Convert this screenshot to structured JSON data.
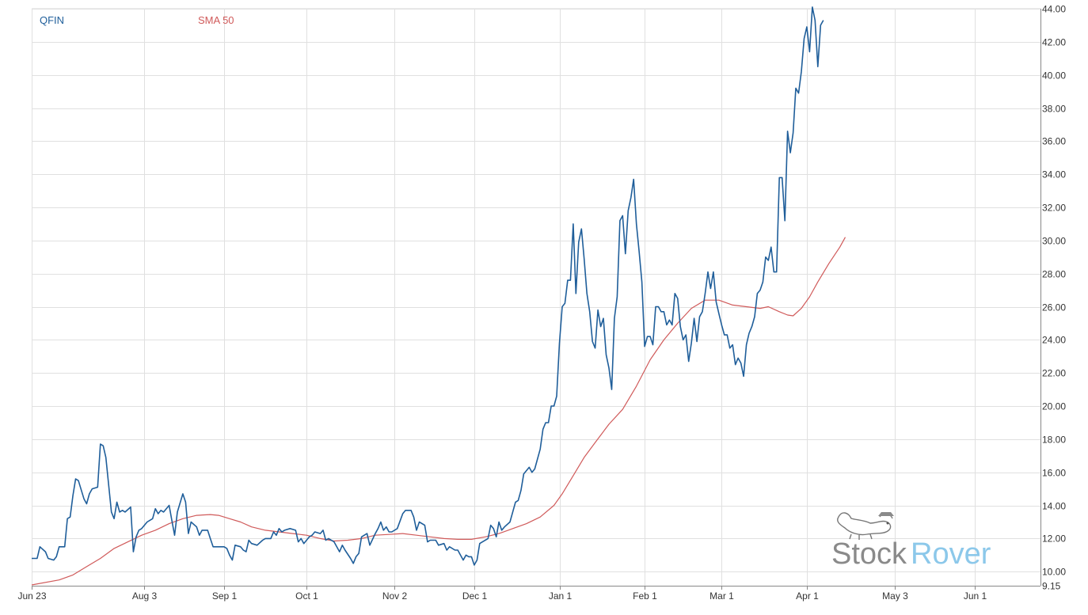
{
  "brand": {
    "logo_text_1": "Stock",
    "logo_text_2": "Rover",
    "logo_icon": "dog-icon"
  },
  "colors": {
    "qfin": "#1f5e9a",
    "sma50": "#d05a5a",
    "grid": "#e0e0e0"
  },
  "chart_data": {
    "type": "line",
    "title": "",
    "xlabel": "",
    "ylabel": "",
    "ylim": [
      9.15,
      44.0
    ],
    "y_ticks": [
      "9.15",
      "10.00",
      "12.00",
      "14.00",
      "16.00",
      "18.00",
      "20.00",
      "22.00",
      "24.00",
      "26.00",
      "28.00",
      "30.00",
      "32.00",
      "34.00",
      "36.00",
      "38.00",
      "40.00",
      "42.00",
      "44.00"
    ],
    "x_ticks": [
      "Jun 23",
      "Aug 3",
      "Sep 1",
      "Oct 1",
      "Nov 2",
      "Dec 1",
      "Jan 1",
      "Feb 1",
      "Mar 1",
      "Apr 1",
      "May 3",
      "Jun 1"
    ],
    "x_tick_days": [
      0,
      41,
      70,
      100,
      132,
      161,
      192,
      223,
      251,
      282,
      314,
      343
    ],
    "x_range_days": [
      0,
      367
    ],
    "grid": true,
    "legend_position": "top-left",
    "series": [
      {
        "name": "QFIN",
        "color": "#1f5e9a",
        "points": [
          [
            0,
            10.8
          ],
          [
            2,
            10.8
          ],
          [
            3,
            11.5
          ],
          [
            5,
            11.2
          ],
          [
            6,
            10.8
          ],
          [
            8,
            10.7
          ],
          [
            9,
            10.9
          ],
          [
            10,
            11.5
          ],
          [
            12,
            11.5
          ],
          [
            13,
            13.2
          ],
          [
            14,
            13.3
          ],
          [
            15,
            14.6
          ],
          [
            16,
            15.6
          ],
          [
            17,
            15.5
          ],
          [
            19,
            14.4
          ],
          [
            20,
            14.1
          ],
          [
            21,
            14.7
          ],
          [
            22,
            15.0
          ],
          [
            24,
            15.1
          ],
          [
            25,
            17.7
          ],
          [
            26,
            17.6
          ],
          [
            27,
            16.9
          ],
          [
            29,
            13.6
          ],
          [
            30,
            13.2
          ],
          [
            31,
            14.2
          ],
          [
            32,
            13.6
          ],
          [
            33,
            13.7
          ],
          [
            34,
            13.6
          ],
          [
            36,
            13.9
          ],
          [
            37,
            11.2
          ],
          [
            38,
            12.1
          ],
          [
            39,
            12.5
          ],
          [
            40,
            12.6
          ],
          [
            42,
            13.0
          ],
          [
            44,
            13.2
          ],
          [
            45,
            13.8
          ],
          [
            46,
            13.5
          ],
          [
            47,
            13.7
          ],
          [
            48,
            13.6
          ],
          [
            50,
            14.0
          ],
          [
            51,
            13.1
          ],
          [
            52,
            12.2
          ],
          [
            53,
            13.6
          ],
          [
            55,
            14.7
          ],
          [
            56,
            14.2
          ],
          [
            57,
            12.3
          ],
          [
            58,
            13.0
          ],
          [
            60,
            12.7
          ],
          [
            61,
            12.2
          ],
          [
            62,
            12.5
          ],
          [
            64,
            12.5
          ],
          [
            65,
            12.0
          ],
          [
            66,
            11.5
          ],
          [
            68,
            11.5
          ],
          [
            70,
            11.5
          ],
          [
            71,
            11.4
          ],
          [
            72,
            11.0
          ],
          [
            73,
            10.7
          ],
          [
            74,
            11.6
          ],
          [
            76,
            11.5
          ],
          [
            77,
            11.3
          ],
          [
            78,
            11.2
          ],
          [
            79,
            11.9
          ],
          [
            80,
            11.7
          ],
          [
            82,
            11.6
          ],
          [
            84,
            11.9
          ],
          [
            85,
            12.0
          ],
          [
            87,
            12.0
          ],
          [
            88,
            12.4
          ],
          [
            89,
            12.2
          ],
          [
            90,
            12.6
          ],
          [
            91,
            12.4
          ],
          [
            92,
            12.5
          ],
          [
            94,
            12.6
          ],
          [
            96,
            12.5
          ],
          [
            97,
            11.8
          ],
          [
            98,
            12.0
          ],
          [
            99,
            11.7
          ],
          [
            101,
            12.1
          ],
          [
            102,
            12.2
          ],
          [
            103,
            12.4
          ],
          [
            105,
            12.3
          ],
          [
            106,
            12.5
          ],
          [
            107,
            11.9
          ],
          [
            108,
            12.0
          ],
          [
            110,
            11.8
          ],
          [
            112,
            11.2
          ],
          [
            113,
            11.6
          ],
          [
            114,
            11.3
          ],
          [
            116,
            10.8
          ],
          [
            117,
            10.5
          ],
          [
            118,
            10.9
          ],
          [
            119,
            11.1
          ],
          [
            120,
            12.1
          ],
          [
            122,
            12.3
          ],
          [
            123,
            11.6
          ],
          [
            125,
            12.3
          ],
          [
            126,
            12.6
          ],
          [
            127,
            13.0
          ],
          [
            128,
            12.5
          ],
          [
            129,
            12.7
          ],
          [
            130,
            12.4
          ],
          [
            131,
            12.4
          ],
          [
            133,
            12.6
          ],
          [
            135,
            13.5
          ],
          [
            136,
            13.7
          ],
          [
            138,
            13.7
          ],
          [
            139,
            13.3
          ],
          [
            140,
            12.5
          ],
          [
            141,
            13.0
          ],
          [
            143,
            12.8
          ],
          [
            144,
            11.8
          ],
          [
            145,
            11.9
          ],
          [
            147,
            11.9
          ],
          [
            148,
            11.6
          ],
          [
            150,
            11.7
          ],
          [
            151,
            11.3
          ],
          [
            152,
            11.5
          ],
          [
            154,
            11.3
          ],
          [
            155,
            11.3
          ],
          [
            156,
            11.0
          ],
          [
            157,
            10.7
          ],
          [
            158,
            11.0
          ],
          [
            159,
            10.9
          ],
          [
            160,
            10.9
          ],
          [
            161,
            10.4
          ],
          [
            162,
            10.7
          ],
          [
            163,
            11.7
          ],
          [
            164,
            11.8
          ],
          [
            166,
            12.0
          ],
          [
            167,
            12.8
          ],
          [
            168,
            12.6
          ],
          [
            169,
            12.1
          ],
          [
            170,
            13.0
          ],
          [
            171,
            12.5
          ],
          [
            172,
            12.7
          ],
          [
            174,
            13.0
          ],
          [
            176,
            14.2
          ],
          [
            177,
            14.3
          ],
          [
            178,
            14.9
          ],
          [
            179,
            15.9
          ],
          [
            181,
            16.3
          ],
          [
            182,
            16.0
          ],
          [
            183,
            16.2
          ],
          [
            185,
            17.4
          ],
          [
            186,
            18.6
          ],
          [
            187,
            19.0
          ],
          [
            188,
            19.0
          ],
          [
            189,
            20.0
          ],
          [
            190,
            20.0
          ],
          [
            191,
            20.6
          ],
          [
            192,
            23.8
          ],
          [
            193,
            26.0
          ],
          [
            194,
            26.2
          ],
          [
            195,
            27.6
          ],
          [
            196,
            27.6
          ],
          [
            197,
            31.0
          ],
          [
            198,
            26.8
          ],
          [
            199,
            29.9
          ],
          [
            200,
            30.7
          ],
          [
            201,
            28.9
          ],
          [
            202,
            26.8
          ],
          [
            203,
            25.7
          ],
          [
            204,
            23.9
          ],
          [
            205,
            23.5
          ],
          [
            206,
            25.8
          ],
          [
            207,
            24.8
          ],
          [
            208,
            25.3
          ],
          [
            209,
            23.1
          ],
          [
            210,
            22.3
          ],
          [
            211,
            21.0
          ],
          [
            212,
            25.3
          ],
          [
            213,
            26.6
          ],
          [
            214,
            31.2
          ],
          [
            215,
            31.5
          ],
          [
            216,
            29.2
          ],
          [
            217,
            31.8
          ],
          [
            218,
            32.6
          ],
          [
            219,
            33.7
          ],
          [
            220,
            31.0
          ],
          [
            221,
            29.3
          ],
          [
            222,
            27.5
          ],
          [
            223,
            23.6
          ],
          [
            224,
            24.2
          ],
          [
            225,
            24.2
          ],
          [
            226,
            23.7
          ],
          [
            227,
            26.0
          ],
          [
            228,
            26.0
          ],
          [
            229,
            25.7
          ],
          [
            230,
            25.7
          ],
          [
            231,
            24.9
          ],
          [
            232,
            25.2
          ],
          [
            233,
            24.9
          ],
          [
            234,
            26.8
          ],
          [
            235,
            26.5
          ],
          [
            236,
            24.8
          ],
          [
            237,
            24.0
          ],
          [
            238,
            24.3
          ],
          [
            239,
            22.7
          ],
          [
            240,
            23.8
          ],
          [
            241,
            25.3
          ],
          [
            242,
            23.9
          ],
          [
            243,
            25.4
          ],
          [
            244,
            25.7
          ],
          [
            245,
            26.8
          ],
          [
            246,
            28.1
          ],
          [
            247,
            27.1
          ],
          [
            248,
            28.1
          ],
          [
            249,
            26.3
          ],
          [
            250,
            25.6
          ],
          [
            251,
            24.9
          ],
          [
            252,
            24.3
          ],
          [
            253,
            24.3
          ],
          [
            254,
            23.5
          ],
          [
            255,
            23.7
          ],
          [
            256,
            22.5
          ],
          [
            257,
            22.9
          ],
          [
            258,
            22.6
          ],
          [
            259,
            21.8
          ],
          [
            260,
            23.7
          ],
          [
            261,
            24.4
          ],
          [
            262,
            24.8
          ],
          [
            263,
            25.4
          ],
          [
            264,
            26.8
          ],
          [
            265,
            27.0
          ],
          [
            266,
            27.5
          ],
          [
            267,
            29.0
          ],
          [
            268,
            28.8
          ],
          [
            269,
            29.6
          ],
          [
            270,
            28.1
          ],
          [
            271,
            28.1
          ],
          [
            272,
            33.8
          ],
          [
            273,
            33.8
          ],
          [
            274,
            31.2
          ],
          [
            275,
            36.6
          ],
          [
            276,
            35.3
          ],
          [
            277,
            36.5
          ],
          [
            278,
            39.2
          ],
          [
            279,
            38.9
          ],
          [
            280,
            40.2
          ],
          [
            281,
            42.2
          ],
          [
            282,
            42.9
          ],
          [
            283,
            41.4
          ],
          [
            284,
            44.1
          ],
          [
            285,
            43.3
          ],
          [
            286,
            40.5
          ],
          [
            287,
            43.0
          ],
          [
            288,
            43.3
          ]
        ]
      },
      {
        "name": "SMA 50",
        "color": "#d05a5a",
        "points": [
          [
            0,
            9.2
          ],
          [
            10,
            9.5
          ],
          [
            15,
            9.8
          ],
          [
            20,
            10.3
          ],
          [
            25,
            10.8
          ],
          [
            30,
            11.4
          ],
          [
            35,
            11.8
          ],
          [
            40,
            12.2
          ],
          [
            45,
            12.5
          ],
          [
            50,
            12.9
          ],
          [
            55,
            13.2
          ],
          [
            60,
            13.4
          ],
          [
            65,
            13.45
          ],
          [
            68,
            13.4
          ],
          [
            72,
            13.2
          ],
          [
            76,
            13.0
          ],
          [
            80,
            12.7
          ],
          [
            85,
            12.5
          ],
          [
            90,
            12.4
          ],
          [
            95,
            12.3
          ],
          [
            100,
            12.2
          ],
          [
            105,
            12.0
          ],
          [
            110,
            11.85
          ],
          [
            115,
            11.9
          ],
          [
            120,
            12.0
          ],
          [
            125,
            12.2
          ],
          [
            130,
            12.25
          ],
          [
            135,
            12.3
          ],
          [
            140,
            12.2
          ],
          [
            145,
            12.1
          ],
          [
            150,
            12.0
          ],
          [
            155,
            11.95
          ],
          [
            160,
            11.95
          ],
          [
            165,
            12.1
          ],
          [
            170,
            12.3
          ],
          [
            175,
            12.6
          ],
          [
            180,
            12.9
          ],
          [
            185,
            13.3
          ],
          [
            190,
            14.0
          ],
          [
            193,
            14.7
          ],
          [
            197,
            15.8
          ],
          [
            201,
            16.9
          ],
          [
            205,
            17.8
          ],
          [
            210,
            18.9
          ],
          [
            215,
            19.8
          ],
          [
            220,
            21.2
          ],
          [
            225,
            22.8
          ],
          [
            230,
            24.0
          ],
          [
            235,
            25.0
          ],
          [
            240,
            25.9
          ],
          [
            245,
            26.4
          ],
          [
            250,
            26.4
          ],
          [
            255,
            26.1
          ],
          [
            260,
            26.0
          ],
          [
            265,
            25.9
          ],
          [
            268,
            26.0
          ],
          [
            272,
            25.7
          ],
          [
            275,
            25.5
          ],
          [
            277,
            25.45
          ],
          [
            280,
            25.9
          ],
          [
            283,
            26.6
          ],
          [
            286,
            27.5
          ],
          [
            290,
            28.6
          ],
          [
            294,
            29.6
          ],
          [
            296,
            30.2
          ]
        ]
      }
    ]
  }
}
